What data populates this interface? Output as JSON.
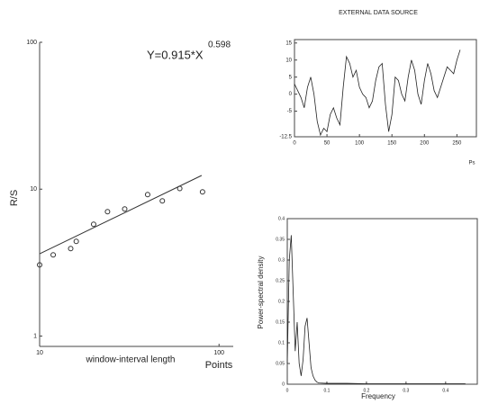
{
  "chart_data": [
    {
      "type": "scatter",
      "annotation": "Y=0.915*X",
      "annotation_exponent": "0.598",
      "y_label": "R/S",
      "x_label": "window-interval length",
      "x_unit": "Points",
      "xlog": true,
      "ylog": true,
      "xlim": [
        10,
        120
      ],
      "ylim": [
        0.85,
        100
      ],
      "xticks": [
        10,
        100
      ],
      "yticks": [
        1,
        10,
        100
      ],
      "color": "#333333",
      "series": [
        {
          "x": [
            10,
            11.9,
            14.9,
            16.0,
            20.0,
            23.9,
            29.8,
            40.0,
            48.3,
            60.4,
            80.9
          ],
          "values": [
            3.05,
            3.57,
            3.94,
            4.41,
            5.77,
            7.03,
            7.33,
            9.19,
            8.32,
            10.1,
            9.59
          ]
        }
      ],
      "fit": {
        "x": [
          10,
          80
        ],
        "y": [
          3.63,
          12.4
        ]
      }
    },
    {
      "type": "line",
      "title": "EXTERNAL DATA SOURCE",
      "x_unit": "Ps",
      "xlim": [
        0,
        280
      ],
      "ylim": [
        -12.5,
        16
      ],
      "xticks": [
        0,
        50,
        100,
        150,
        200,
        250
      ],
      "yticks": [
        -12.5,
        -5,
        0,
        5,
        10,
        15
      ],
      "color": "#222222",
      "series": [
        {
          "x": [
            0,
            5,
            10,
            15,
            20,
            25,
            30,
            35,
            40,
            45,
            50,
            55,
            60,
            65,
            70,
            75,
            80,
            85,
            90,
            95,
            100,
            105,
            110,
            115,
            120,
            125,
            130,
            135,
            140,
            145,
            150,
            155,
            160,
            165,
            170,
            175,
            180,
            185,
            190,
            195,
            200,
            205,
            210,
            215,
            220,
            225,
            230,
            235,
            240,
            245,
            250,
            255
          ],
          "values": [
            3,
            1,
            -1,
            -4,
            2,
            5,
            0,
            -8,
            -12,
            -10,
            -11,
            -6,
            -4,
            -7,
            -9,
            2,
            11,
            9,
            5,
            7,
            2,
            0,
            -1,
            -4,
            -2,
            4,
            8,
            9,
            -3,
            -11,
            -6,
            5,
            4,
            0,
            -2,
            5,
            10,
            7,
            0,
            -3,
            4,
            9,
            6,
            1,
            -1,
            2,
            5,
            8,
            7,
            6,
            10,
            13
          ]
        }
      ]
    },
    {
      "type": "line",
      "y_label": "Power-spectral density",
      "x_label": "Frequency",
      "xlim": [
        0,
        0.48
      ],
      "ylim": [
        0,
        0.4
      ],
      "xticks": [
        0,
        0.1,
        0.2,
        0.3,
        0.4
      ],
      "yticks": [
        0,
        0.05,
        0.1,
        0.15,
        0.2,
        0.25,
        0.3,
        0.35,
        0.4
      ],
      "color": "#222222",
      "series": [
        {
          "x": [
            0,
            0.005,
            0.01,
            0.015,
            0.02,
            0.025,
            0.03,
            0.035,
            0.04,
            0.045,
            0.05,
            0.055,
            0.06,
            0.065,
            0.07,
            0.075,
            0.08,
            0.1,
            0.15,
            0.2,
            0.25,
            0.3,
            0.35,
            0.4,
            0.45
          ],
          "values": [
            0.05,
            0.3,
            0.36,
            0.22,
            0.08,
            0.15,
            0.05,
            0.02,
            0.06,
            0.14,
            0.16,
            0.1,
            0.04,
            0.02,
            0.01,
            0.005,
            0.003,
            0.002,
            0.002,
            0.001,
            0.001,
            0.001,
            0.001,
            0.001,
            0.001
          ]
        }
      ]
    }
  ]
}
